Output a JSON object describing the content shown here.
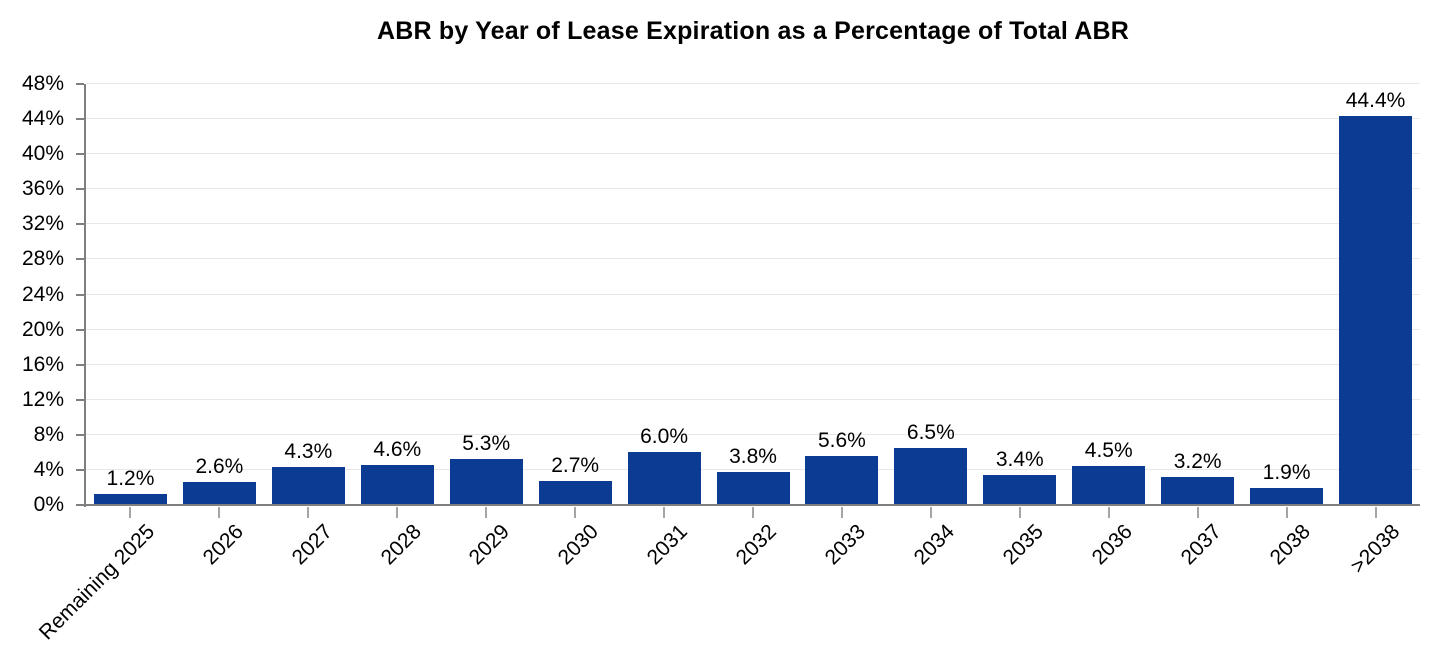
{
  "chart_data": {
    "type": "bar",
    "title": "ABR by Year of Lease Expiration as a Percentage of Total ABR",
    "categories": [
      "Remaining 2025",
      "2026",
      "2027",
      "2028",
      "2029",
      "2030",
      "2031",
      "2032",
      "2033",
      "2034",
      "2035",
      "2036",
      "2037",
      "2038",
      ">2038"
    ],
    "values": [
      1.2,
      2.6,
      4.3,
      4.6,
      5.3,
      2.7,
      6.0,
      3.8,
      5.6,
      6.5,
      3.4,
      4.5,
      3.2,
      1.9,
      44.4
    ],
    "value_labels": [
      "1.2%",
      "2.6%",
      "4.3%",
      "4.6%",
      "5.3%",
      "2.7%",
      "6.0%",
      "3.8%",
      "5.6%",
      "6.5%",
      "3.4%",
      "4.5%",
      "3.2%",
      "1.9%",
      "44.4%"
    ],
    "xlabel": "",
    "ylabel": "",
    "ylim": [
      0,
      48
    ],
    "y_tick_step": 4,
    "y_tick_labels": [
      "0%",
      "4%",
      "8%",
      "12%",
      "16%",
      "20%",
      "24%",
      "28%",
      "32%",
      "36%",
      "40%",
      "44%",
      "48%"
    ],
    "grid": "horizontal",
    "legend_position": "none",
    "colors": {
      "bar": "#0c3b94",
      "axis": "#7f7f7f",
      "x_tick": "#a6a6a6",
      "gridline": "#e8e8e8",
      "text": "#000000",
      "background": "#ffffff"
    }
  }
}
